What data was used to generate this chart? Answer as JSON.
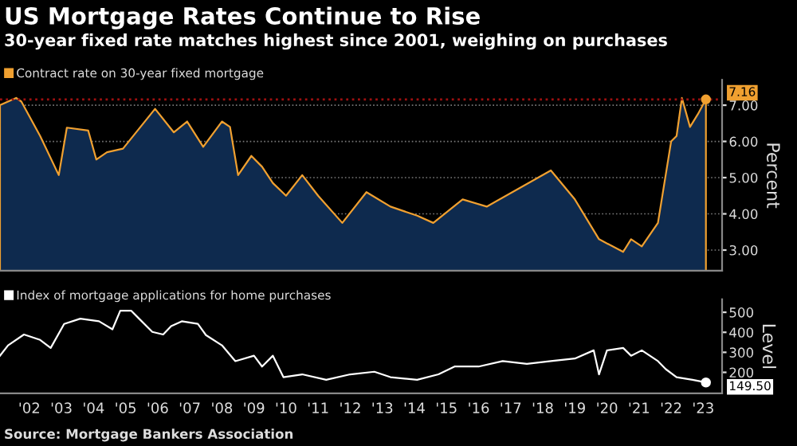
{
  "chart_data": [
    {
      "type": "area",
      "title": "US Mortgage Rates Continue to Rise",
      "subtitle": "30-year fixed rate matches highest since 2001, weighing on purchases",
      "ylabel": "Percent",
      "legend": "top left",
      "grid": "y",
      "tick_labels": "y",
      "xlim": [
        "2001-08",
        "2024-02"
      ],
      "ylim": [
        2.43,
        7.7
      ],
      "yticks": [
        {
          "value": 3,
          "label": "3.00"
        },
        {
          "value": 4,
          "label": "4.00"
        },
        {
          "value": 5,
          "label": "5.00"
        },
        {
          "value": 6,
          "label": "6.00"
        },
        {
          "value": 7,
          "label": "7.00"
        }
      ],
      "ref_lines": [
        {
          "axis": "y",
          "value": 7.16,
          "color": "#a01010",
          "line_style": "dotted"
        }
      ],
      "series": [
        {
          "name": "Contract rate on 30-year fixed mortgage",
          "color": "#f0a030",
          "x": [
            "2001-08",
            "2002-02",
            "2002-04",
            "2002-11",
            "2003-06",
            "2003-09",
            "2004-05",
            "2004-08",
            "2004-12",
            "2005-06",
            "2006-06",
            "2007-01",
            "2007-06",
            "2007-12",
            "2008-07",
            "2008-10",
            "2009-01",
            "2009-06",
            "2009-10",
            "2010-02",
            "2010-07",
            "2011-01",
            "2011-07",
            "2012-04",
            "2013-01",
            "2013-10",
            "2014-08",
            "2015-02",
            "2016-01",
            "2016-10",
            "2018-10",
            "2019-07",
            "2020-04",
            "2021-01",
            "2021-04",
            "2021-08",
            "2022-02",
            "2022-07",
            "2022-09",
            "2022-11",
            "2023-02",
            "2023-05",
            "2023-08"
          ],
          "values": [
            7.0,
            7.2,
            7.1,
            6.15,
            5.07,
            6.38,
            6.3,
            5.5,
            5.7,
            5.8,
            6.9,
            6.25,
            6.55,
            5.85,
            6.55,
            6.4,
            5.07,
            5.6,
            5.3,
            4.85,
            4.5,
            5.07,
            4.5,
            3.75,
            4.6,
            4.2,
            3.95,
            3.75,
            4.4,
            4.2,
            5.2,
            4.4,
            3.3,
            2.95,
            3.3,
            3.1,
            3.75,
            6.0,
            6.15,
            7.2,
            6.4,
            6.75,
            7.16
          ],
          "value_labels": [
            null,
            null,
            null,
            null,
            null,
            null,
            null,
            null,
            null,
            null,
            null,
            null,
            null,
            null,
            null,
            null,
            null,
            null,
            null,
            null,
            null,
            null,
            null,
            null,
            null,
            null,
            null,
            null,
            null,
            null,
            null,
            null,
            null,
            null,
            null,
            null,
            null,
            null,
            null,
            null,
            null,
            null,
            "7.16"
          ]
        }
      ]
    },
    {
      "type": "line",
      "ylabel": "Level",
      "legend": "top left",
      "xlim": [
        "2001-08",
        "2024-02"
      ],
      "ylim": [
        95,
        565
      ],
      "yticks": [
        200,
        300,
        400,
        500
      ],
      "xticks": [
        {
          "value": "2002-07",
          "label": "'02"
        },
        {
          "value": "2003-07",
          "label": "'03"
        },
        {
          "value": "2004-07",
          "label": "'04"
        },
        {
          "value": "2005-07",
          "label": "'05"
        },
        {
          "value": "2006-07",
          "label": "'06"
        },
        {
          "value": "2007-07",
          "label": "'07"
        },
        {
          "value": "2008-07",
          "label": "'08"
        },
        {
          "value": "2009-07",
          "label": "'09"
        },
        {
          "value": "2010-07",
          "label": "'10"
        },
        {
          "value": "2011-07",
          "label": "'11"
        },
        {
          "value": "2012-07",
          "label": "'12"
        },
        {
          "value": "2013-07",
          "label": "'13"
        },
        {
          "value": "2014-07",
          "label": "'14"
        },
        {
          "value": "2015-07",
          "label": "'15"
        },
        {
          "value": "2016-07",
          "label": "'16"
        },
        {
          "value": "2017-07",
          "label": "'17"
        },
        {
          "value": "2018-07",
          "label": "'18"
        },
        {
          "value": "2019-07",
          "label": "'19"
        },
        {
          "value": "2020-07",
          "label": "'20"
        },
        {
          "value": "2021-07",
          "label": "'21"
        },
        {
          "value": "2022-07",
          "label": "'22"
        },
        {
          "value": "2023-07",
          "label": "'23"
        }
      ],
      "annotations": [
        "Source: Mortgage Bankers Association"
      ],
      "series": [
        {
          "name": "Index of mortgage applications for home purchases",
          "color": "#ffffff",
          "x": [
            "2001-08",
            "2001-11",
            "2002-05",
            "2002-11",
            "2003-03",
            "2003-08",
            "2004-02",
            "2004-09",
            "2005-02",
            "2005-05",
            "2005-09",
            "2005-12",
            "2006-05",
            "2006-09",
            "2006-12",
            "2007-04",
            "2007-10",
            "2008-01",
            "2008-07",
            "2008-12",
            "2009-07",
            "2009-10",
            "2010-02",
            "2010-06",
            "2011-01",
            "2011-10",
            "2012-07",
            "2013-04",
            "2013-10",
            "2014-08",
            "2015-04",
            "2015-10",
            "2016-07",
            "2017-04",
            "2018-01",
            "2018-10",
            "2019-07",
            "2020-02",
            "2020-04",
            "2020-07",
            "2021-01",
            "2021-04",
            "2021-08",
            "2022-02",
            "2022-05",
            "2022-09",
            "2023-03",
            "2023-08"
          ],
          "values": [
            283,
            335,
            389,
            362,
            322,
            442,
            468,
            455,
            415,
            508,
            508,
            468,
            402,
            389,
            431,
            455,
            442,
            386,
            335,
            256,
            283,
            229,
            283,
            176,
            190,
            163,
            190,
            203,
            176,
            163,
            190,
            229,
            229,
            256,
            242,
            256,
            269,
            310,
            190,
            310,
            322,
            283,
            310,
            256,
            216,
            176,
            163,
            149.5
          ],
          "value_labels": [
            null,
            null,
            null,
            null,
            null,
            null,
            null,
            null,
            null,
            null,
            null,
            null,
            null,
            null,
            null,
            null,
            null,
            null,
            null,
            null,
            null,
            null,
            null,
            null,
            null,
            null,
            null,
            null,
            null,
            null,
            null,
            null,
            null,
            null,
            null,
            null,
            null,
            null,
            null,
            null,
            null,
            null,
            null,
            null,
            null,
            null,
            null,
            "149.50"
          ]
        }
      ]
    }
  ]
}
